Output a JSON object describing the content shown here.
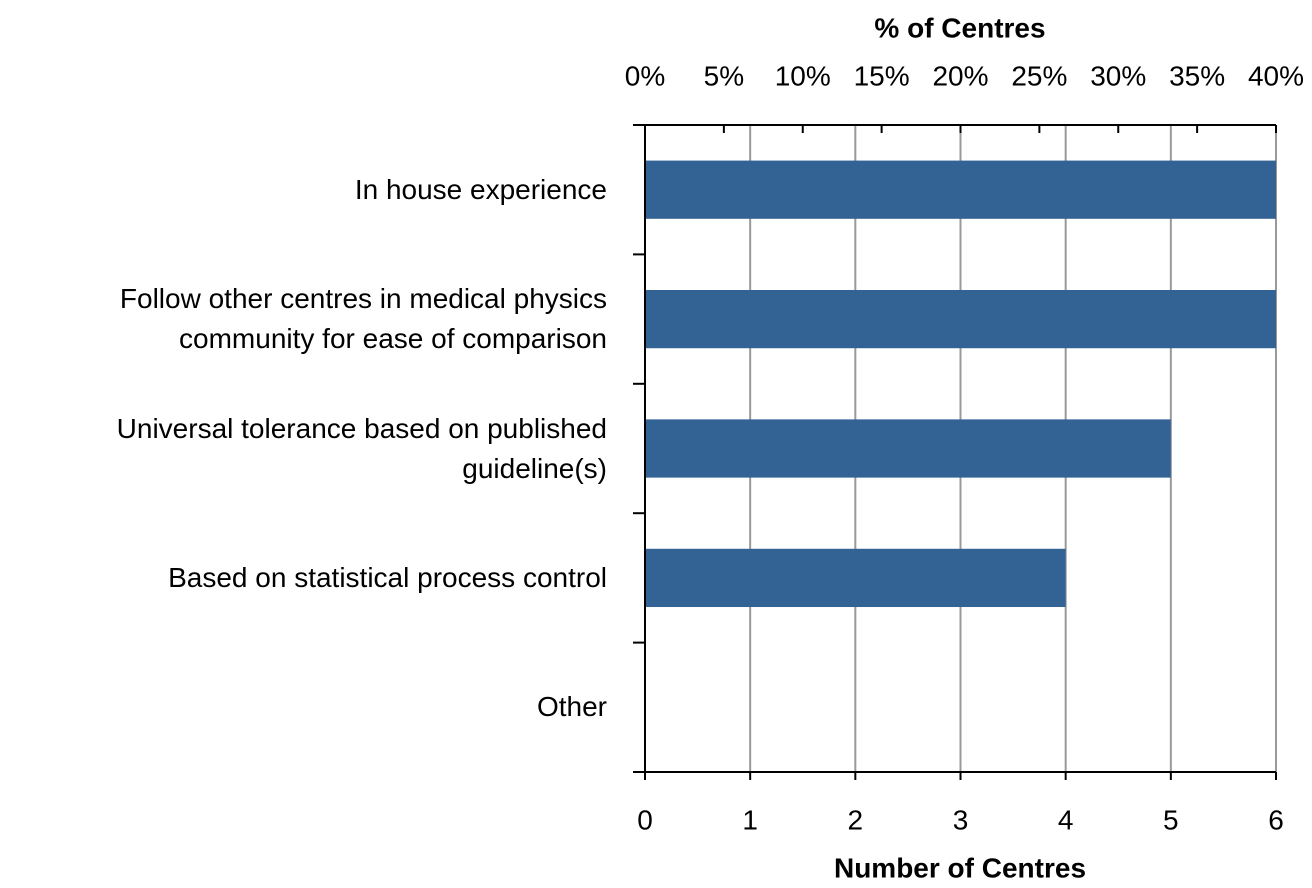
{
  "chart_data": {
    "type": "bar",
    "orientation": "horizontal",
    "x2_title": "% of Centres",
    "x_title": "Number of Centres",
    "categories": [
      "In house experience",
      "Follow other centres in medical physics\ncommunity for ease of comparison",
      "Universal tolerance based on published\nguideline(s)",
      "Based on statistical process control",
      "Other"
    ],
    "values": [
      6,
      6,
      5,
      4,
      0
    ],
    "color": "#336295",
    "xlim": [
      0,
      6
    ],
    "xticks": [
      0,
      1,
      2,
      3,
      4,
      5,
      6
    ],
    "x2lim": [
      0,
      40
    ],
    "x2ticks": [
      {
        "value": 0,
        "label": "0%"
      },
      {
        "value": 5,
        "label": "5%"
      },
      {
        "value": 10,
        "label": "10%"
      },
      {
        "value": 15,
        "label": "15%"
      },
      {
        "value": 20,
        "label": "20%"
      },
      {
        "value": 25,
        "label": "25%"
      },
      {
        "value": 30,
        "label": "30%"
      },
      {
        "value": 35,
        "label": "35%"
      },
      {
        "value": 40,
        "label": "40%"
      }
    ],
    "grid": true
  }
}
